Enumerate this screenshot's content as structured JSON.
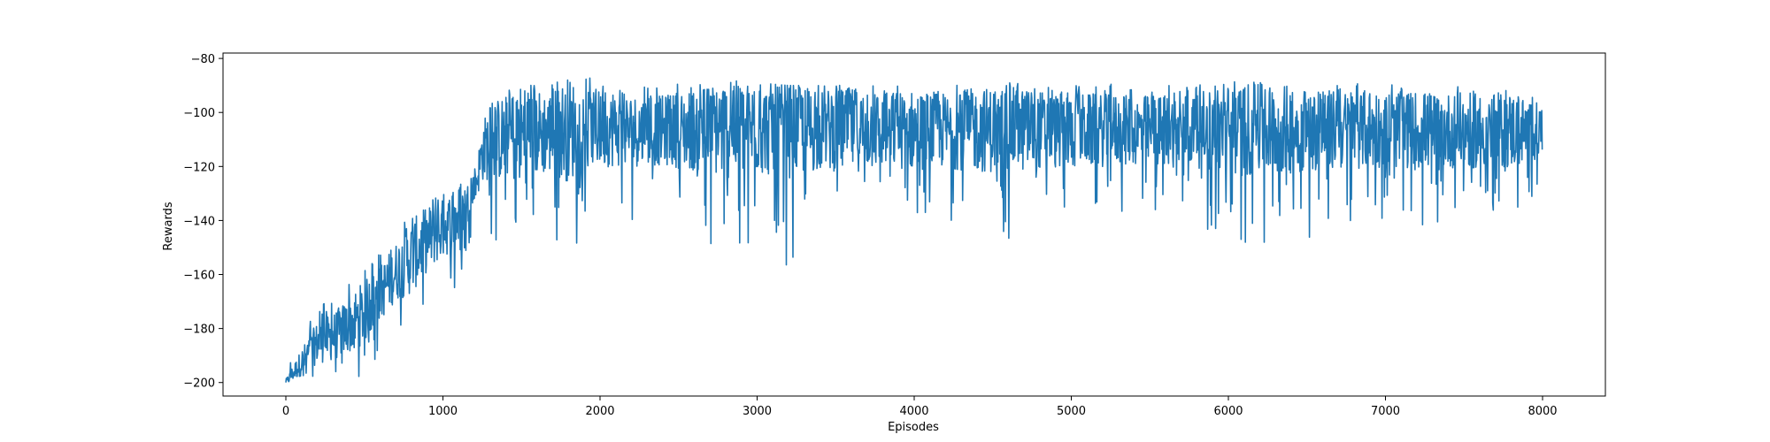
{
  "chart_data": {
    "type": "line",
    "title": "",
    "xlabel": "Episodes",
    "ylabel": "Rewards",
    "xlim": [
      -400,
      8400
    ],
    "ylim": [
      -205,
      -78
    ],
    "grid": false,
    "legend": "none",
    "x_ticks": [
      0,
      1000,
      2000,
      3000,
      4000,
      5000,
      6000,
      7000,
      8000
    ],
    "x_tick_labels": [
      "0",
      "1000",
      "2000",
      "3000",
      "4000",
      "5000",
      "6000",
      "7000",
      "8000"
    ],
    "y_ticks": [
      -200,
      -180,
      -160,
      -140,
      -120,
      -100,
      -80
    ],
    "y_tick_labels": [
      "−200",
      "−180",
      "−160",
      "−140",
      "−120",
      "−100",
      "−80"
    ],
    "series": [
      {
        "color": "#1f77b4",
        "x": [
          0,
          100,
          200,
          300,
          400,
          500,
          600,
          700,
          800,
          900,
          1000,
          1100,
          1200,
          1250,
          1300,
          1400,
          1500,
          1600,
          1700,
          1800,
          1900,
          2000,
          2200,
          2400,
          2600,
          2800,
          3000,
          3200,
          3400,
          3600,
          3800,
          4000,
          4200,
          4400,
          4600,
          4800,
          5000,
          5200,
          5400,
          5600,
          5800,
          6000,
          6200,
          6400,
          6600,
          6800,
          7000,
          7200,
          7400,
          7600,
          7800,
          8000
        ],
        "upper": [
          -196,
          -182,
          -172,
          -168,
          -162,
          -158,
          -152,
          -145,
          -136,
          -128,
          -130,
          -126,
          -122,
          -103,
          -94,
          -92,
          -90,
          -89,
          -88,
          -88,
          -86,
          -89,
          -91,
          -90,
          -89,
          -88,
          -89,
          -90,
          -90,
          -89,
          -90,
          -89,
          -90,
          -89,
          -88,
          -90,
          -90,
          -89,
          -90,
          -89,
          -90,
          -88,
          -89,
          -89,
          -90,
          -89,
          -89,
          -89,
          -89,
          -88,
          -88,
          -92
        ],
        "lower": [
          -200,
          -200,
          -200,
          -200,
          -200,
          -200,
          -190,
          -184,
          -186,
          -172,
          -170,
          -168,
          -140,
          -142,
          -147,
          -150,
          -159,
          -148,
          -145,
          -160,
          -140,
          -138,
          -140,
          -137,
          -145,
          -156,
          -150,
          -157,
          -145,
          -146,
          -142,
          -143,
          -141,
          -146,
          -147,
          -144,
          -141,
          -138,
          -137,
          -138,
          -141,
          -150,
          -155,
          -148,
          -145,
          -141,
          -139,
          -143,
          -140,
          -138,
          -140,
          -128
        ],
        "mid": [
          -200,
          -193,
          -186,
          -184,
          -180,
          -175,
          -168,
          -160,
          -155,
          -148,
          -144,
          -140,
          -130,
          -116,
          -112,
          -111,
          -110,
          -109,
          -109,
          -108,
          -108,
          -108,
          -108,
          -108,
          -108,
          -108,
          -108,
          -108,
          -108,
          -108,
          -108,
          -108,
          -108,
          -108,
          -108,
          -108,
          -108,
          -108,
          -108,
          -108,
          -108,
          -108,
          -108,
          -108,
          -108,
          -108,
          -108,
          -108,
          -108,
          -108,
          -108,
          -108
        ]
      }
    ]
  }
}
